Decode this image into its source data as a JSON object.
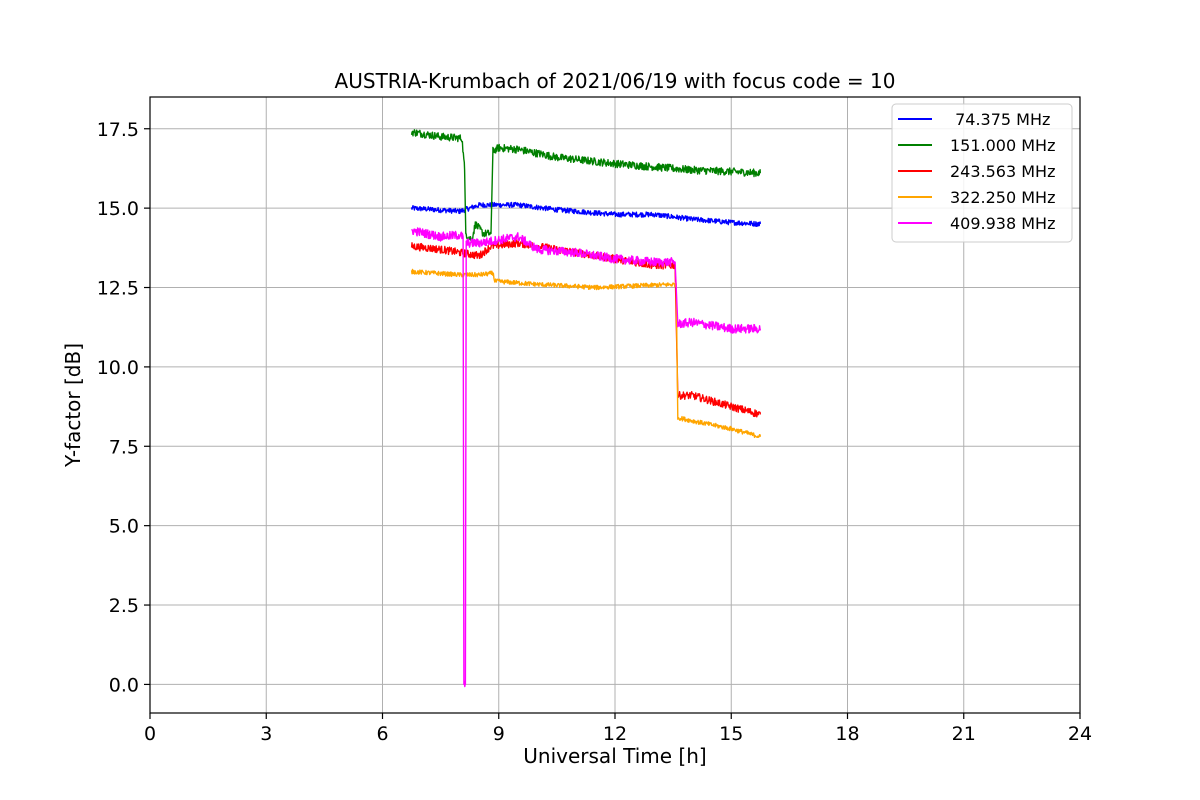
{
  "chart_data": {
    "type": "line",
    "title": "AUSTRIA-Krumbach of 2021/06/19 with focus code = 10",
    "xlabel": "Universal Time [h]",
    "ylabel": "Y-factor [dB]",
    "xlim": [
      0,
      24
    ],
    "ylim": [
      -0.9,
      18.5
    ],
    "xticks": [
      0,
      3,
      6,
      9,
      12,
      15,
      18,
      21,
      24
    ],
    "xtick_labels": [
      "0",
      "3",
      "6",
      "9",
      "12",
      "15",
      "18",
      "21",
      "24"
    ],
    "yticks": [
      0.0,
      2.5,
      5.0,
      7.5,
      10.0,
      12.5,
      15.0,
      17.5
    ],
    "ytick_labels": [
      "0.0",
      "2.5",
      "5.0",
      "7.5",
      "10.0",
      "12.5",
      "15.0",
      "17.5"
    ],
    "grid": true,
    "legend_position": "top-right",
    "series": [
      {
        "name": " 74.375 MHz",
        "color": "#0000ff",
        "noise": 0.08,
        "points": [
          [
            6.75,
            15.0
          ],
          [
            8.0,
            14.9
          ],
          [
            8.5,
            15.1
          ],
          [
            9.5,
            15.1
          ],
          [
            10.5,
            14.95
          ],
          [
            12.0,
            14.8
          ],
          [
            13.0,
            14.8
          ],
          [
            14.0,
            14.65
          ],
          [
            15.0,
            14.55
          ],
          [
            15.75,
            14.5
          ]
        ]
      },
      {
        "name": "151.000 MHz",
        "color": "#008000",
        "noise": 0.12,
        "points": [
          [
            6.75,
            17.4
          ],
          [
            7.5,
            17.25
          ],
          [
            8.05,
            17.2
          ],
          [
            8.12,
            16.2
          ],
          [
            8.15,
            14.2
          ],
          [
            8.3,
            14.0
          ],
          [
            8.4,
            14.5
          ],
          [
            8.6,
            14.2
          ],
          [
            8.8,
            14.2
          ],
          [
            8.85,
            16.8
          ],
          [
            9.0,
            16.9
          ],
          [
            9.5,
            16.85
          ],
          [
            10.5,
            16.6
          ],
          [
            12.0,
            16.4
          ],
          [
            13.0,
            16.3
          ],
          [
            14.0,
            16.2
          ],
          [
            15.0,
            16.15
          ],
          [
            15.75,
            16.1
          ]
        ]
      },
      {
        "name": "243.563 MHz",
        "color": "#ff0000",
        "noise": 0.12,
        "points": [
          [
            6.75,
            13.8
          ],
          [
            7.5,
            13.7
          ],
          [
            8.0,
            13.6
          ],
          [
            8.5,
            13.5
          ],
          [
            8.8,
            13.8
          ],
          [
            9.5,
            13.9
          ],
          [
            10.5,
            13.7
          ],
          [
            12.0,
            13.4
          ],
          [
            13.0,
            13.2
          ],
          [
            13.55,
            13.2
          ],
          [
            13.62,
            9.1
          ],
          [
            14.0,
            9.1
          ],
          [
            15.0,
            8.75
          ],
          [
            15.75,
            8.5
          ]
        ]
      },
      {
        "name": "322.250 MHz",
        "color": "#ffa500",
        "noise": 0.07,
        "points": [
          [
            6.75,
            13.0
          ],
          [
            8.0,
            12.9
          ],
          [
            8.5,
            12.9
          ],
          [
            8.85,
            12.95
          ],
          [
            8.9,
            12.7
          ],
          [
            10.0,
            12.6
          ],
          [
            11.5,
            12.5
          ],
          [
            12.5,
            12.55
          ],
          [
            13.58,
            12.6
          ],
          [
            13.62,
            8.4
          ],
          [
            14.0,
            8.3
          ],
          [
            15.0,
            8.05
          ],
          [
            15.75,
            7.8
          ]
        ]
      },
      {
        "name": "409.938 MHz",
        "color": "#ff00ff",
        "noise": 0.14,
        "points": [
          [
            6.75,
            14.3
          ],
          [
            7.5,
            14.1
          ],
          [
            8.0,
            14.15
          ],
          [
            8.08,
            14.1
          ],
          [
            8.1,
            0.0
          ],
          [
            8.14,
            0.0
          ],
          [
            8.16,
            13.9
          ],
          [
            8.5,
            13.9
          ],
          [
            9.0,
            14.0
          ],
          [
            9.5,
            14.1
          ],
          [
            10.0,
            13.7
          ],
          [
            11.0,
            13.6
          ],
          [
            12.0,
            13.4
          ],
          [
            13.0,
            13.3
          ],
          [
            13.55,
            13.3
          ],
          [
            13.62,
            11.35
          ],
          [
            14.0,
            11.4
          ],
          [
            15.0,
            11.2
          ],
          [
            15.75,
            11.2
          ]
        ]
      }
    ]
  }
}
